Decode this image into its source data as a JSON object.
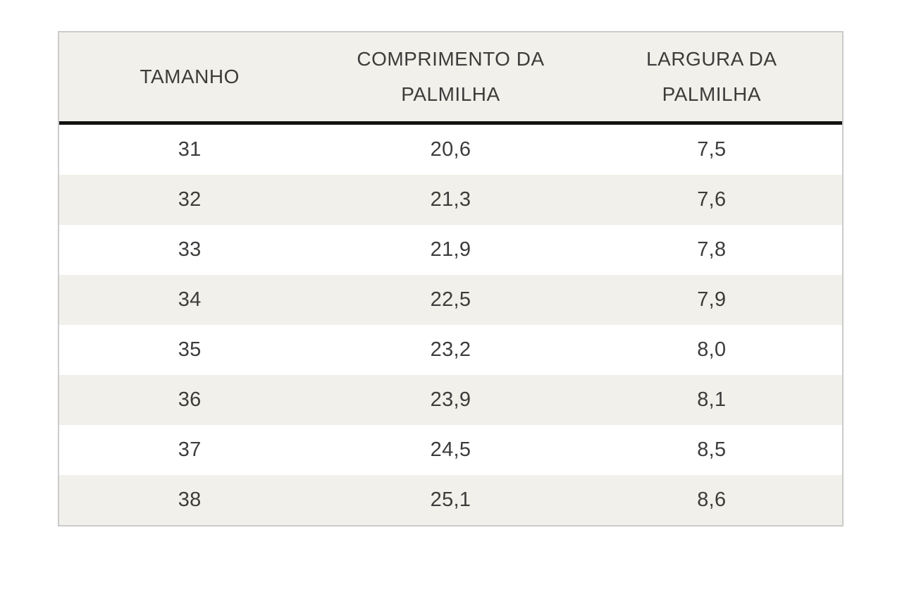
{
  "chart_data": {
    "type": "table",
    "title": "",
    "columns": [
      "TAMANHO",
      "COMPRIMENTO DA PALMILHA",
      "LARGURA DA PALMILHA"
    ],
    "rows": [
      [
        "31",
        "20,6",
        "7,5"
      ],
      [
        "32",
        "21,3",
        "7,6"
      ],
      [
        "33",
        "21,9",
        "7,8"
      ],
      [
        "34",
        "22,5",
        "7,9"
      ],
      [
        "35",
        "23,2",
        "8,0"
      ],
      [
        "36",
        "23,9",
        "8,1"
      ],
      [
        "37",
        "24,5",
        "8,5"
      ],
      [
        "38",
        "25,1",
        "8,6"
      ]
    ]
  },
  "table": {
    "headers": {
      "size": "TAMANHO",
      "insole_length": "COMPRIMENTO DA PALMILHA",
      "insole_width": "LARGURA DA PALMILHA"
    }
  },
  "colors": {
    "header_background": "#f2f0ea",
    "stripe_background": "#f2f0ea",
    "row_background": "#ffffff",
    "outer_border": "#cbcbcb",
    "header_rule": "#121212",
    "text": "#3c3c3b",
    "page_background": "#ffffff"
  }
}
